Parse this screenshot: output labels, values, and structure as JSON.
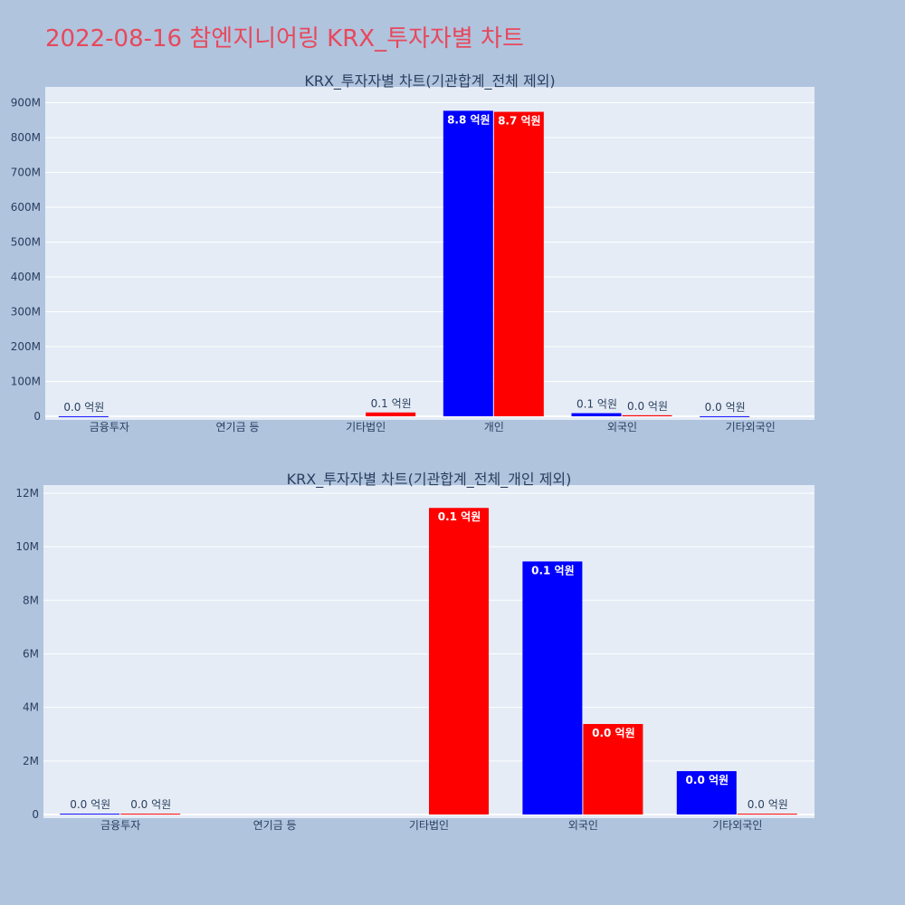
{
  "page_title": "2022-08-16 참엔지니어링 KRX_투자자별 차트",
  "chart_data": [
    {
      "type": "bar",
      "title": "KRX_투자자별 차트(기관합계_전체 제외)",
      "xlabel": "",
      "ylabel": "",
      "categories": [
        "금융투자",
        "연기금 등",
        "기타법인",
        "개인",
        "외국인",
        "기타외국인"
      ],
      "ylim": [
        0,
        930000000
      ],
      "y_ticks": [
        0,
        100000000,
        200000000,
        300000000,
        400000000,
        500000000,
        600000000,
        700000000,
        800000000,
        900000000
      ],
      "y_tick_labels": [
        "0",
        "100M",
        "200M",
        "300M",
        "400M",
        "500M",
        "600M",
        "700M",
        "800M",
        "900M"
      ],
      "grid": true,
      "legend": "none",
      "series": [
        {
          "color": "#0000ff",
          "values": [
            300000,
            0,
            0,
            877000000,
            9000000,
            300000
          ],
          "labels": [
            "0.0 억원",
            "",
            "",
            "8.8 억원",
            "0.1 억원",
            "0.0 억원"
          ]
        },
        {
          "color": "#ff0000",
          "values": [
            0,
            0,
            11000000,
            874000000,
            3000000,
            0
          ],
          "labels": [
            "",
            "",
            "0.1 억원",
            "8.7 억원",
            "0.0 억원",
            ""
          ]
        }
      ]
    },
    {
      "type": "bar",
      "title": "KRX_투자자별 차트(기관합계_전체_개인 제외)",
      "xlabel": "",
      "ylabel": "",
      "categories": [
        "금융투자",
        "연기금 등",
        "기타법인",
        "외국인",
        "기타외국인"
      ],
      "ylim": [
        0,
        12100000
      ],
      "y_ticks": [
        0,
        2000000,
        4000000,
        6000000,
        8000000,
        10000000,
        12000000
      ],
      "y_tick_labels": [
        "0",
        "2M",
        "4M",
        "6M",
        "8M",
        "10M",
        "12M"
      ],
      "grid": true,
      "legend": "none",
      "series": [
        {
          "color": "#0000ff",
          "values": [
            30000,
            0,
            0,
            9450000,
            1620000
          ],
          "labels": [
            "0.0 억원",
            "",
            "",
            "0.1 억원",
            "0.0 억원"
          ]
        },
        {
          "color": "#ff0000",
          "values": [
            30000,
            0,
            11450000,
            3380000,
            30000
          ],
          "labels": [
            "0.0 억원",
            "",
            "0.1 억원",
            "0.0 억원",
            "0.0 억원"
          ]
        }
      ]
    }
  ]
}
